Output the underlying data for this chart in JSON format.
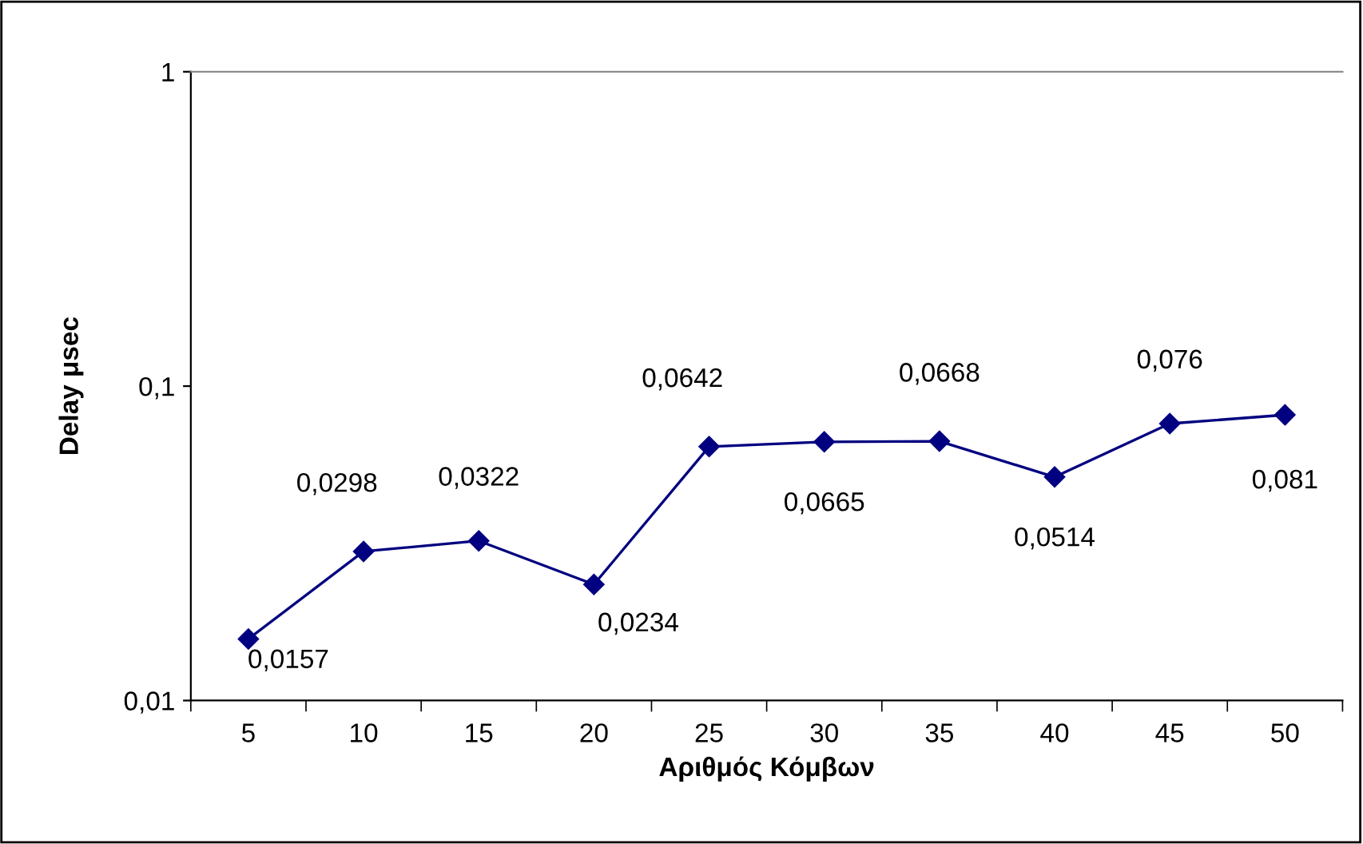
{
  "chart_data": {
    "type": "line",
    "xlabel": "Αριθμός Κόμβων",
    "ylabel": "Delay μsec",
    "categories": [
      "5",
      "10",
      "15",
      "20",
      "25",
      "30",
      "35",
      "40",
      "45",
      "50"
    ],
    "series": [
      {
        "color": "#000080",
        "values": [
          0.0157,
          0.0298,
          0.0322,
          0.0234,
          0.0642,
          0.0665,
          0.0668,
          0.0514,
          0.076,
          0.081
        ],
        "value_labels": [
          "0,0157",
          "0,0298",
          "0,0322",
          "0,0234",
          "0,0642",
          "0,0665",
          "0,0668",
          "0,0514",
          "0,076",
          "0,081"
        ]
      }
    ],
    "log": true,
    "ylim": [
      0.01,
      1
    ],
    "yticks": [
      {
        "value": 0.01,
        "label": "0,01"
      },
      {
        "value": 0.1,
        "label": "0,1"
      },
      {
        "value": 1,
        "label": "1"
      }
    ],
    "marker": "diamond",
    "line_style": "solid",
    "grid": false,
    "legend": false
  }
}
